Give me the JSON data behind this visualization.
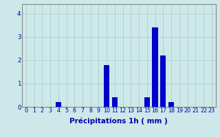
{
  "hours": [
    0,
    1,
    2,
    3,
    4,
    5,
    6,
    7,
    8,
    9,
    10,
    11,
    12,
    13,
    14,
    15,
    16,
    17,
    18,
    19,
    20,
    21,
    22,
    23
  ],
  "values": [
    0,
    0,
    0,
    0,
    0.2,
    0,
    0,
    0,
    0,
    0,
    1.8,
    0.4,
    0,
    0,
    0,
    0.4,
    3.4,
    2.2,
    0.2,
    0,
    0,
    0,
    0,
    0
  ],
  "bar_color": "#0000cc",
  "background_color": "#cce8e8",
  "grid_color": "#aac8c8",
  "xlabel": "Précipitations 1h ( mm )",
  "xlabel_fontsize": 7.5,
  "tick_fontsize": 5.8,
  "ylabel_ticks": [
    0,
    1,
    2,
    3,
    4
  ],
  "ylim": [
    0,
    4.4
  ],
  "xlim": [
    -0.5,
    23.5
  ]
}
